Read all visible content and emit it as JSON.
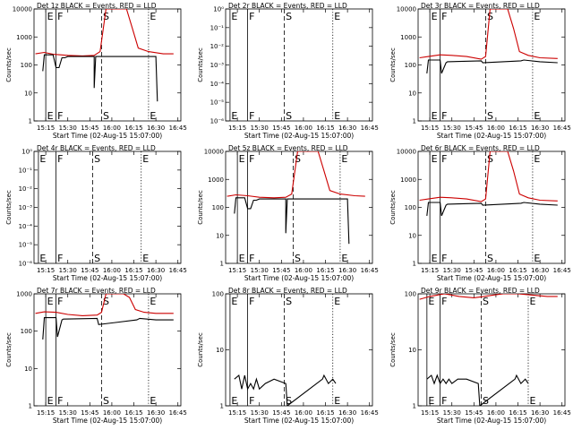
{
  "figure": {
    "xlabel": "Start Time (02-Aug-15 15:07:00)",
    "ylabel": "Counts/sec",
    "xticks": [
      "15:15",
      "15:30",
      "15:45",
      "16:00",
      "16:15",
      "16:30",
      "16:45"
    ],
    "colors": {
      "events": "#000000",
      "lld": "#cc0000"
    }
  },
  "chart_data": [
    {
      "type": "line",
      "title": "Det 1z BLACK = Events, RED = LLD",
      "yscale": "log",
      "ylim": [
        1,
        10000
      ],
      "yticks": [
        1,
        10,
        100,
        1000,
        10000
      ],
      "yticklabels": [
        "1",
        "10",
        "100",
        "1000",
        "10000"
      ],
      "markers": [
        {
          "label": "E",
          "t": "15:15"
        },
        {
          "label": "F",
          "t": "15:22"
        },
        {
          "label": "S",
          "t": "15:53"
        },
        {
          "label": "E",
          "t": "16:25"
        }
      ],
      "series": [
        {
          "name": "LLD",
          "color": "#cc0000",
          "x": [
            "15:08",
            "15:14",
            "15:20",
            "15:30",
            "15:40",
            "15:48",
            "15:52",
            "15:56",
            "16:10",
            "16:14",
            "16:18",
            "16:25",
            "16:35",
            "16:42"
          ],
          "y": [
            250,
            280,
            240,
            220,
            210,
            220,
            300,
            10000,
            10000,
            2000,
            400,
            300,
            250,
            250
          ]
        },
        {
          "name": "Events",
          "color": "#000000",
          "x": [
            "15:13",
            "15:14",
            "15:20",
            "15:22",
            "15:24",
            "15:26",
            "15:28",
            "15:30",
            "15:40",
            "15:48",
            "15:48",
            "15:49",
            "16:18",
            "16:20",
            "16:30",
            "16:31"
          ],
          "y": [
            60,
            230,
            230,
            80,
            80,
            180,
            180,
            200,
            200,
            200,
            15,
            200,
            200,
            200,
            200,
            5
          ]
        }
      ]
    },
    {
      "type": "line",
      "title": "Det 2r BLACK = Events, RED = LLD",
      "yscale": "log",
      "ylim": [
        1e-06,
        1
      ],
      "yticks": [
        1e-06,
        1e-05,
        0.0001,
        0.001,
        0.01,
        0.1,
        1
      ],
      "yticklabels": [
        "10⁻⁶",
        "10⁻⁵",
        "10⁻⁴",
        "10⁻³",
        "10⁻²",
        "10⁻¹",
        "10⁰"
      ],
      "markers": [
        {
          "label": "E",
          "t": "15:10"
        },
        {
          "label": "F",
          "t": "15:22"
        },
        {
          "label": "S",
          "t": "15:47"
        },
        {
          "label": "E",
          "t": "16:20"
        }
      ],
      "series": []
    },
    {
      "type": "line",
      "title": "Det 3r BLACK = Events, RED = LLD",
      "yscale": "log",
      "ylim": [
        1,
        10000
      ],
      "yticks": [
        1,
        10,
        100,
        1000,
        10000
      ],
      "yticklabels": [
        "1",
        "10",
        "100",
        "1000",
        "10000"
      ],
      "markers": [
        {
          "label": "E",
          "t": "15:15"
        },
        {
          "label": "F",
          "t": "15:22"
        },
        {
          "label": "S",
          "t": "15:53"
        },
        {
          "label": "E",
          "t": "16:25"
        }
      ],
      "series": [
        {
          "name": "LLD",
          "color": "#cc0000",
          "x": [
            "15:08",
            "15:14",
            "15:22",
            "15:30",
            "15:40",
            "15:50",
            "15:53",
            "15:56",
            "16:08",
            "16:12",
            "16:16",
            "16:22",
            "16:30",
            "16:42"
          ],
          "y": [
            180,
            200,
            230,
            220,
            200,
            160,
            200,
            10000,
            10000,
            2000,
            300,
            220,
            180,
            170
          ]
        },
        {
          "name": "Events",
          "color": "#000000",
          "x": [
            "15:13",
            "15:14",
            "15:22",
            "15:23",
            "15:26",
            "15:27",
            "15:50",
            "15:51",
            "16:17",
            "16:19",
            "16:30",
            "16:42"
          ],
          "y": [
            50,
            150,
            150,
            50,
            120,
            130,
            140,
            120,
            140,
            150,
            130,
            120
          ]
        }
      ]
    },
    {
      "type": "line",
      "title": "Det 4r BLACK = Events, RED = LLD",
      "yscale": "log",
      "ylim": [
        1e-06,
        1
      ],
      "yticks": [
        1e-06,
        1e-05,
        0.0001,
        0.001,
        0.01,
        0.1,
        1
      ],
      "yticklabels": [
        "10⁻⁶",
        "10⁻⁵",
        "10⁻⁴",
        "10⁻³",
        "10⁻²",
        "10⁻¹",
        "10⁰"
      ],
      "markers": [
        {
          "label": "E",
          "t": "15:10"
        },
        {
          "label": "F",
          "t": "15:22"
        },
        {
          "label": "S",
          "t": "15:47"
        },
        {
          "label": "E",
          "t": "16:20"
        }
      ],
      "series": []
    },
    {
      "type": "line",
      "title": "Det 5z BLACK = Events, RED = LLD",
      "yscale": "log",
      "ylim": [
        1,
        10000
      ],
      "yticks": [
        1,
        10,
        100,
        1000,
        10000
      ],
      "yticklabels": [
        "1",
        "10",
        "100",
        "1000",
        "10000"
      ],
      "markers": [
        {
          "label": "E",
          "t": "15:15"
        },
        {
          "label": "F",
          "t": "15:22"
        },
        {
          "label": "S",
          "t": "15:53"
        },
        {
          "label": "E",
          "t": "16:25"
        }
      ],
      "series": [
        {
          "name": "LLD",
          "color": "#cc0000",
          "x": [
            "15:08",
            "15:14",
            "15:22",
            "15:30",
            "15:40",
            "15:48",
            "15:52",
            "15:56",
            "16:10",
            "16:14",
            "16:18",
            "16:25",
            "16:35",
            "16:42"
          ],
          "y": [
            250,
            280,
            260,
            230,
            220,
            230,
            300,
            10000,
            10000,
            2000,
            400,
            300,
            260,
            250
          ]
        },
        {
          "name": "Events",
          "color": "#000000",
          "x": [
            "15:13",
            "15:14",
            "15:20",
            "15:22",
            "15:24",
            "15:26",
            "15:28",
            "15:30",
            "15:40",
            "15:48",
            "15:48",
            "15:49",
            "16:18",
            "16:20",
            "16:30",
            "16:31"
          ],
          "y": [
            60,
            220,
            220,
            90,
            90,
            180,
            180,
            200,
            200,
            200,
            12,
            200,
            200,
            200,
            200,
            5
          ]
        }
      ]
    },
    {
      "type": "line",
      "title": "Det 6r BLACK = Events, RED = LLD",
      "yscale": "log",
      "ylim": [
        1,
        10000
      ],
      "yticks": [
        1,
        10,
        100,
        1000,
        10000
      ],
      "yticklabels": [
        "1",
        "10",
        "100",
        "1000",
        "10000"
      ],
      "markers": [
        {
          "label": "E",
          "t": "15:15"
        },
        {
          "label": "F",
          "t": "15:22"
        },
        {
          "label": "S",
          "t": "15:53"
        },
        {
          "label": "E",
          "t": "16:25"
        }
      ],
      "series": [
        {
          "name": "LLD",
          "color": "#cc0000",
          "x": [
            "15:08",
            "15:14",
            "15:22",
            "15:30",
            "15:40",
            "15:50",
            "15:53",
            "15:56",
            "16:08",
            "16:12",
            "16:16",
            "16:22",
            "16:30",
            "16:42"
          ],
          "y": [
            180,
            200,
            230,
            220,
            200,
            160,
            200,
            10000,
            10000,
            2000,
            300,
            220,
            180,
            170
          ]
        },
        {
          "name": "Events",
          "color": "#000000",
          "x": [
            "15:13",
            "15:14",
            "15:22",
            "15:23",
            "15:26",
            "15:27",
            "15:50",
            "15:51",
            "16:17",
            "16:19",
            "16:30",
            "16:42"
          ],
          "y": [
            50,
            150,
            150,
            50,
            120,
            130,
            140,
            120,
            140,
            150,
            130,
            120
          ]
        }
      ]
    },
    {
      "type": "line",
      "title": "Det 7r BLACK = Events, RED = LLD",
      "yscale": "log",
      "ylim": [
        1,
        1000
      ],
      "yticks": [
        1,
        10,
        100,
        1000
      ],
      "yticklabels": [
        "1",
        "10",
        "100",
        "1000"
      ],
      "markers": [
        {
          "label": "E",
          "t": "15:15"
        },
        {
          "label": "F",
          "t": "15:22"
        },
        {
          "label": "S",
          "t": "15:53"
        },
        {
          "label": "E",
          "t": "16:25"
        }
      ],
      "series": [
        {
          "name": "LLD",
          "color": "#cc0000",
          "x": [
            "15:08",
            "15:14",
            "15:22",
            "15:30",
            "15:40",
            "15:50",
            "15:53",
            "15:56",
            "16:08",
            "16:12",
            "16:16",
            "16:22",
            "16:30",
            "16:42"
          ],
          "y": [
            300,
            330,
            320,
            280,
            260,
            270,
            320,
            1000,
            1000,
            800,
            380,
            320,
            300,
            300
          ]
        },
        {
          "name": "Events",
          "color": "#000000",
          "x": [
            "15:13",
            "15:14",
            "15:22",
            "15:23",
            "15:26",
            "15:27",
            "15:50",
            "15:51",
            "16:17",
            "16:19",
            "16:30",
            "16:42"
          ],
          "y": [
            60,
            230,
            230,
            70,
            200,
            210,
            220,
            150,
            200,
            220,
            200,
            200
          ]
        }
      ]
    },
    {
      "type": "line",
      "title": "Det 8r BLACK = Events, RED = LLD",
      "yscale": "log",
      "ylim": [
        1,
        100
      ],
      "yticks": [
        1,
        10,
        100
      ],
      "yticklabels": [
        "1",
        "10",
        "100"
      ],
      "markers": [
        {
          "label": "E",
          "t": "15:10"
        },
        {
          "label": "F",
          "t": "15:22"
        },
        {
          "label": "S",
          "t": "15:47"
        },
        {
          "label": "E",
          "t": "16:20"
        }
      ],
      "series": [
        {
          "name": "Events",
          "color": "#000000",
          "x": [
            "15:13",
            "15:16",
            "15:18",
            "15:20",
            "15:22",
            "15:24",
            "15:26",
            "15:28",
            "15:30",
            "15:34",
            "15:40",
            "15:48",
            "15:49",
            "16:13",
            "16:14",
            "16:17",
            "16:20",
            "16:22"
          ],
          "y": [
            3,
            3.5,
            2,
            3.5,
            2,
            2.5,
            2,
            3,
            2,
            2.5,
            3,
            2.5,
            1,
            3,
            3.5,
            2.5,
            3,
            2.5
          ]
        }
      ]
    },
    {
      "type": "line",
      "title": "Det 9r BLACK = Events, RED = LLD",
      "yscale": "log",
      "ylim": [
        1,
        100
      ],
      "yticks": [
        1,
        10,
        100
      ],
      "yticklabels": [
        "1",
        "10",
        "100"
      ],
      "markers": [
        {
          "label": "E",
          "t": "15:13"
        },
        {
          "label": "F",
          "t": "15:22"
        },
        {
          "label": "S",
          "t": "15:50"
        },
        {
          "label": "E",
          "t": "16:22"
        }
      ],
      "series": [
        {
          "name": "LLD",
          "color": "#cc0000",
          "x": [
            "15:08",
            "15:15",
            "15:25",
            "15:35",
            "15:45",
            "15:52",
            "15:58",
            "16:05",
            "16:15",
            "16:25",
            "16:35",
            "16:42"
          ],
          "y": [
            80,
            90,
            100,
            90,
            85,
            90,
            95,
            100,
            100,
            95,
            90,
            90
          ]
        },
        {
          "name": "Events",
          "color": "#000000",
          "x": [
            "15:13",
            "15:16",
            "15:18",
            "15:20",
            "15:22",
            "15:24",
            "15:26",
            "15:28",
            "15:30",
            "15:34",
            "15:40",
            "15:48",
            "15:49",
            "16:13",
            "16:14",
            "16:17",
            "16:20",
            "16:22"
          ],
          "y": [
            3,
            3.5,
            2.5,
            3.5,
            2.5,
            3,
            2.5,
            3,
            2.5,
            3,
            3,
            2.5,
            1,
            3,
            3.5,
            2.5,
            3,
            2.5
          ]
        }
      ]
    }
  ]
}
